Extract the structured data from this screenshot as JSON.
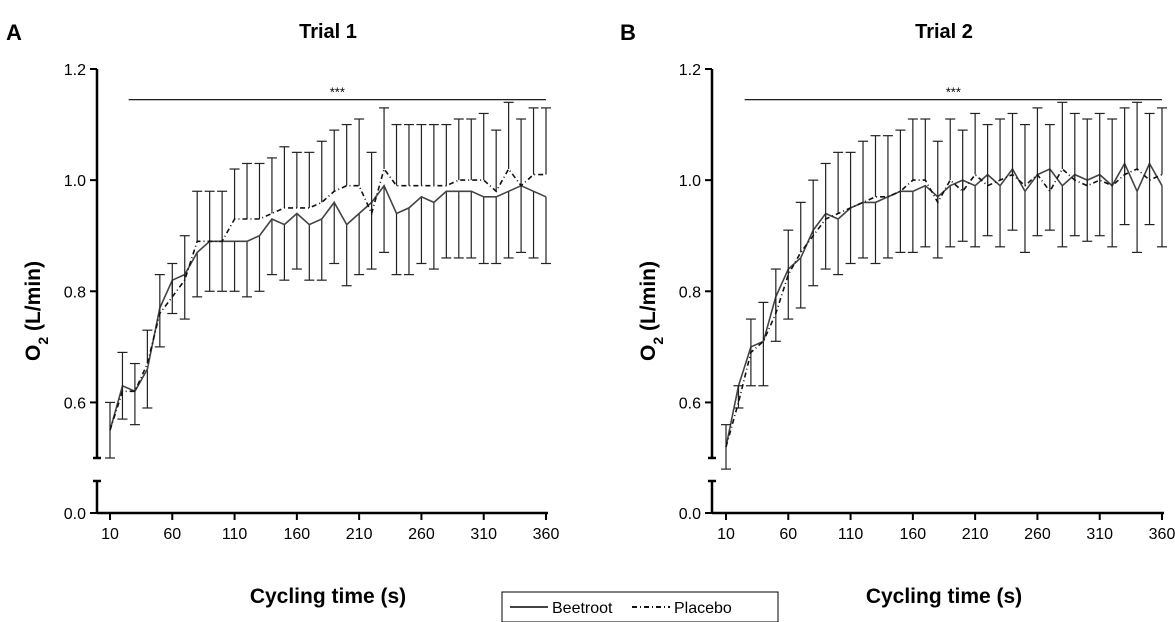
{
  "chart_data": [
    {
      "type": "line",
      "panel_letter": "A",
      "title": "Trial 1",
      "xlabel": "Cycling time (s)",
      "ylabel": "O2 (L/min)",
      "ylabel_main": "O",
      "ylabel_sub": "2",
      "ylabel_rest": " (L/min)",
      "x_ticks": [
        10,
        60,
        110,
        160,
        210,
        260,
        310,
        360
      ],
      "y_ticks_upper": [
        0.6,
        0.8,
        1.0,
        1.2
      ],
      "y_tick_labels_upper": [
        "0.6",
        "0.8",
        "1.0",
        "1.2"
      ],
      "y_tick_lower": 0.0,
      "y_tick_label_lower": "0.0",
      "ylim": [
        0.5,
        1.2
      ],
      "axis_break": true,
      "significance": {
        "label": "***",
        "x_start": 25,
        "x_end": 360,
        "y": 1.17
      },
      "x": [
        10,
        20,
        30,
        40,
        50,
        60,
        70,
        80,
        90,
        100,
        110,
        120,
        130,
        140,
        150,
        160,
        170,
        180,
        190,
        200,
        210,
        220,
        230,
        240,
        250,
        260,
        270,
        280,
        290,
        300,
        310,
        320,
        330,
        340,
        350,
        360
      ],
      "series": [
        {
          "name": "Beetroot",
          "style": "solid",
          "color": "#444444",
          "values": [
            0.55,
            0.63,
            0.62,
            0.66,
            0.77,
            0.82,
            0.83,
            0.87,
            0.89,
            0.89,
            0.89,
            0.89,
            0.9,
            0.93,
            0.92,
            0.94,
            0.92,
            0.93,
            0.96,
            0.92,
            0.94,
            0.96,
            0.99,
            0.94,
            0.95,
            0.97,
            0.96,
            0.98,
            0.98,
            0.98,
            0.97,
            0.97,
            0.98,
            0.99,
            0.98,
            0.97
          ],
          "error": [
            0.05,
            0.06,
            0.06,
            0.07,
            0.07,
            0.06,
            0.08,
            0.08,
            0.09,
            0.09,
            0.09,
            0.1,
            0.1,
            0.1,
            0.1,
            0.1,
            0.1,
            0.11,
            0.11,
            0.11,
            0.11,
            0.12,
            0.12,
            0.11,
            0.12,
            0.12,
            0.12,
            0.12,
            0.12,
            0.12,
            0.12,
            0.12,
            0.12,
            0.12,
            0.12,
            0.12
          ]
        },
        {
          "name": "Placebo",
          "style": "dashed",
          "color": "#111111",
          "values": [
            0.55,
            0.62,
            0.62,
            0.67,
            0.76,
            0.79,
            0.82,
            0.89,
            0.89,
            0.89,
            0.93,
            0.93,
            0.93,
            0.94,
            0.95,
            0.95,
            0.95,
            0.96,
            0.98,
            0.99,
            0.99,
            0.94,
            1.02,
            0.99,
            0.99,
            0.99,
            0.99,
            0.99,
            1.0,
            1.0,
            1.0,
            0.98,
            1.02,
            0.99,
            1.01,
            1.01
          ],
          "error": [
            0.05,
            0.07,
            0.05,
            0.06,
            0.07,
            0.06,
            0.08,
            0.09,
            0.09,
            0.09,
            0.09,
            0.1,
            0.1,
            0.1,
            0.11,
            0.1,
            0.1,
            0.11,
            0.11,
            0.11,
            0.12,
            0.11,
            0.11,
            0.11,
            0.11,
            0.11,
            0.11,
            0.11,
            0.11,
            0.11,
            0.12,
            0.11,
            0.12,
            0.12,
            0.12,
            0.12
          ]
        }
      ]
    },
    {
      "type": "line",
      "panel_letter": "B",
      "title": "Trial 2",
      "xlabel": "Cycling time (s)",
      "ylabel": "O2 (L/min)",
      "ylabel_main": "O",
      "ylabel_sub": "2",
      "ylabel_rest": " (L/min)",
      "x_ticks": [
        10,
        60,
        110,
        160,
        210,
        260,
        310,
        360
      ],
      "y_ticks_upper": [
        0.6,
        0.8,
        1.0,
        1.2
      ],
      "y_tick_labels_upper": [
        "0.6",
        "0.8",
        "1.0",
        "1.2"
      ],
      "y_tick_lower": 0.0,
      "y_tick_label_lower": "0.0",
      "ylim": [
        0.5,
        1.2
      ],
      "axis_break": true,
      "significance": {
        "label": "***",
        "x_start": 25,
        "x_end": 360,
        "y": 1.17
      },
      "x": [
        10,
        20,
        30,
        40,
        50,
        60,
        70,
        80,
        90,
        100,
        110,
        120,
        130,
        140,
        150,
        160,
        170,
        180,
        190,
        200,
        210,
        220,
        230,
        240,
        250,
        260,
        270,
        280,
        290,
        300,
        310,
        320,
        330,
        340,
        350,
        360
      ],
      "series": [
        {
          "name": "Beetroot",
          "style": "solid",
          "color": "#444444",
          "values": [
            0.52,
            0.63,
            0.7,
            0.71,
            0.79,
            0.84,
            0.86,
            0.91,
            0.94,
            0.93,
            0.95,
            0.96,
            0.96,
            0.97,
            0.98,
            0.98,
            0.99,
            0.97,
            0.99,
            1.0,
            0.99,
            1.01,
            0.99,
            1.02,
            0.98,
            1.01,
            1.02,
            0.99,
            1.01,
            1.0,
            1.01,
            0.99,
            1.03,
            0.98,
            1.03,
            0.99
          ],
          "error": [
            0.04,
            0.04,
            0.07,
            0.08,
            0.08,
            0.09,
            0.09,
            0.1,
            0.1,
            0.1,
            0.1,
            0.1,
            0.11,
            0.11,
            0.11,
            0.11,
            0.11,
            0.11,
            0.11,
            0.11,
            0.11,
            0.11,
            0.11,
            0.11,
            0.11,
            0.11,
            0.11,
            0.11,
            0.11,
            0.11,
            0.11,
            0.11,
            0.11,
            0.11,
            0.11,
            0.11
          ]
        },
        {
          "name": "Placebo",
          "style": "dashed",
          "color": "#111111",
          "values": [
            0.52,
            0.6,
            0.69,
            0.71,
            0.76,
            0.83,
            0.87,
            0.9,
            0.93,
            0.94,
            0.95,
            0.96,
            0.97,
            0.97,
            0.98,
            1.0,
            1.0,
            0.96,
            1.0,
            0.98,
            1.01,
            0.99,
            1.0,
            1.01,
            0.99,
            1.01,
            0.98,
            1.02,
            1.0,
            0.99,
            1.0,
            0.99,
            1.01,
            1.02,
            1.0,
            1.01
          ],
          "error": [
            0.04,
            0.03,
            0.06,
            0.07,
            0.08,
            0.08,
            0.09,
            0.1,
            0.1,
            0.11,
            0.1,
            0.11,
            0.11,
            0.11,
            0.11,
            0.11,
            0.11,
            0.11,
            0.11,
            0.11,
            0.11,
            0.11,
            0.11,
            0.11,
            0.11,
            0.12,
            0.12,
            0.12,
            0.12,
            0.12,
            0.12,
            0.12,
            0.12,
            0.12,
            0.12,
            0.12
          ]
        }
      ]
    }
  ],
  "legend": {
    "items": [
      {
        "label": "Beetroot",
        "style": "solid"
      },
      {
        "label": "Placebo",
        "style": "dashed"
      }
    ]
  }
}
